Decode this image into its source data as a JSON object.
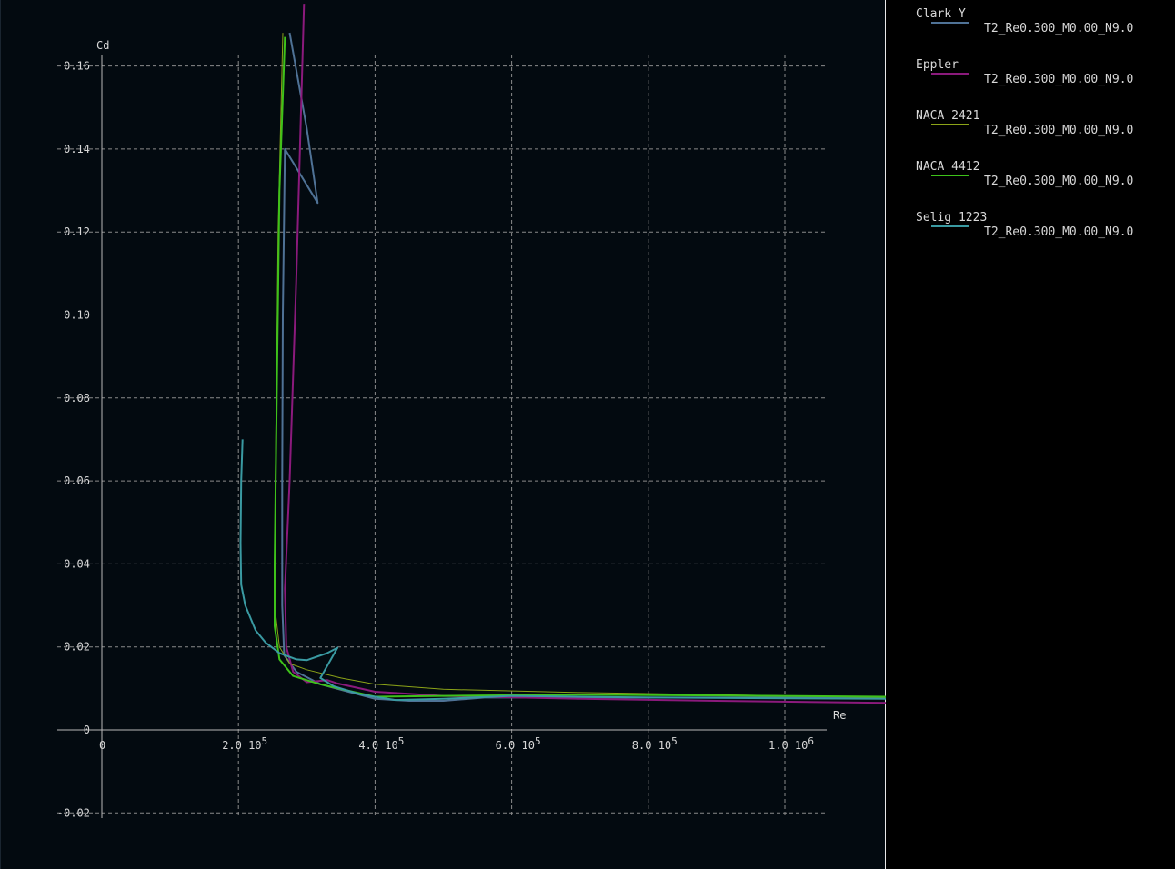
{
  "colors": {
    "background": "#030a10",
    "panel": "#000000",
    "grid": "#8a8a8a",
    "axis": "#b8b8b8",
    "text": "#d8d8d8"
  },
  "legend": [
    {
      "name": "Clark Y",
      "file": "T2_Re0.300_M0.00_N9.0",
      "color": "#4f7296",
      "width": 2
    },
    {
      "name": "Eppler",
      "file": "T2_Re0.300_M0.00_N9.0",
      "color": "#8b1a7c",
      "width": 2
    },
    {
      "name": "NACA 2421",
      "file": "T2_Re0.300_M0.00_N9.0",
      "color": "#8ca418",
      "width": 1
    },
    {
      "name": "NACA 4412",
      "file": "T2_Re0.300_M0.00_N9.0",
      "color": "#3ec21a",
      "width": 2
    },
    {
      "name": "Selig 1223",
      "file": "T2_Re0.300_M0.00_N9.0",
      "color": "#3a9aa2",
      "width": 2
    }
  ],
  "chart_data": {
    "type": "line",
    "xlabel": "Re",
    "ylabel": "Cd",
    "xlim": [
      0,
      1100000
    ],
    "ylim": [
      -0.02,
      0.16
    ],
    "grid": true,
    "x_ticks": [
      {
        "value": 0,
        "mantissa": "0",
        "exp": ""
      },
      {
        "value": 200000,
        "mantissa": "2.0 10",
        "exp": "5"
      },
      {
        "value": 400000,
        "mantissa": "4.0 10",
        "exp": "5"
      },
      {
        "value": 600000,
        "mantissa": "6.0 10",
        "exp": "5"
      },
      {
        "value": 800000,
        "mantissa": "8.0 10",
        "exp": "5"
      },
      {
        "value": 1000000,
        "mantissa": "1.0 10",
        "exp": "6"
      }
    ],
    "y_ticks": [
      {
        "value": -0.02,
        "label": "-0.02"
      },
      {
        "value": 0,
        "label": "0"
      },
      {
        "value": 0.02,
        "label": "0.02"
      },
      {
        "value": 0.04,
        "label": "0.04"
      },
      {
        "value": 0.06,
        "label": "0.06"
      },
      {
        "value": 0.08,
        "label": "0.08"
      },
      {
        "value": 0.1,
        "label": "0.10"
      },
      {
        "value": 0.12,
        "label": "0.12"
      },
      {
        "value": 0.14,
        "label": "0.14"
      },
      {
        "value": 0.16,
        "label": "0.16"
      }
    ],
    "series": [
      {
        "name": "Clark Y",
        "points": [
          [
            275000,
            0.168
          ],
          [
            300000,
            0.145
          ],
          [
            316000,
            0.127
          ],
          [
            268000,
            0.14
          ],
          [
            265000,
            0.1
          ],
          [
            264000,
            0.06
          ],
          [
            264000,
            0.03
          ],
          [
            267000,
            0.018
          ],
          [
            285000,
            0.014
          ],
          [
            320000,
            0.011
          ],
          [
            400000,
            0.0075
          ],
          [
            450000,
            0.007
          ],
          [
            500000,
            0.007
          ],
          [
            560000,
            0.0078
          ],
          [
            700000,
            0.0078
          ],
          [
            900000,
            0.0078
          ],
          [
            1150000,
            0.0078
          ]
        ]
      },
      {
        "name": "Eppler",
        "points": [
          [
            296000,
            0.175
          ],
          [
            285000,
            0.11
          ],
          [
            275000,
            0.06
          ],
          [
            268000,
            0.034
          ],
          [
            270000,
            0.02
          ],
          [
            280000,
            0.014
          ],
          [
            300000,
            0.0115
          ],
          [
            330000,
            0.012
          ],
          [
            345000,
            0.0112
          ],
          [
            400000,
            0.0092
          ],
          [
            500000,
            0.0082
          ],
          [
            700000,
            0.0075
          ],
          [
            900000,
            0.007
          ],
          [
            1150000,
            0.0065
          ]
        ]
      },
      {
        "name": "NACA 2421",
        "points": [
          [
            265000,
            0.168
          ],
          [
            258000,
            0.12
          ],
          [
            254000,
            0.06
          ],
          [
            253000,
            0.03
          ],
          [
            260000,
            0.02
          ],
          [
            275000,
            0.016
          ],
          [
            300000,
            0.0145
          ],
          [
            350000,
            0.0125
          ],
          [
            400000,
            0.011
          ],
          [
            500000,
            0.0098
          ],
          [
            700000,
            0.009
          ],
          [
            900000,
            0.0085
          ],
          [
            1150000,
            0.0078
          ]
        ]
      },
      {
        "name": "NACA 4412",
        "points": [
          [
            268000,
            0.167
          ],
          [
            260000,
            0.13
          ],
          [
            256000,
            0.08
          ],
          [
            253000,
            0.04
          ],
          [
            253000,
            0.025
          ],
          [
            260000,
            0.017
          ],
          [
            280000,
            0.013
          ],
          [
            320000,
            0.011
          ],
          [
            400000,
            0.008
          ],
          [
            500000,
            0.0082
          ],
          [
            700000,
            0.0085
          ],
          [
            900000,
            0.0083
          ],
          [
            1150000,
            0.008
          ]
        ]
      },
      {
        "name": "Selig 1223",
        "points": [
          [
            206000,
            0.07
          ],
          [
            204000,
            0.06
          ],
          [
            203000,
            0.045
          ],
          [
            204000,
            0.035
          ],
          [
            210000,
            0.03
          ],
          [
            225000,
            0.024
          ],
          [
            240000,
            0.021
          ],
          [
            260000,
            0.0185
          ],
          [
            285000,
            0.017
          ],
          [
            300000,
            0.0168
          ],
          [
            330000,
            0.0185
          ],
          [
            345000,
            0.0198
          ],
          [
            320000,
            0.0125
          ],
          [
            340000,
            0.0105
          ],
          [
            380000,
            0.0085
          ],
          [
            430000,
            0.0072
          ],
          [
            500000,
            0.0075
          ],
          [
            600000,
            0.0082
          ],
          [
            800000,
            0.0078
          ],
          [
            1150000,
            0.0075
          ]
        ]
      }
    ]
  }
}
